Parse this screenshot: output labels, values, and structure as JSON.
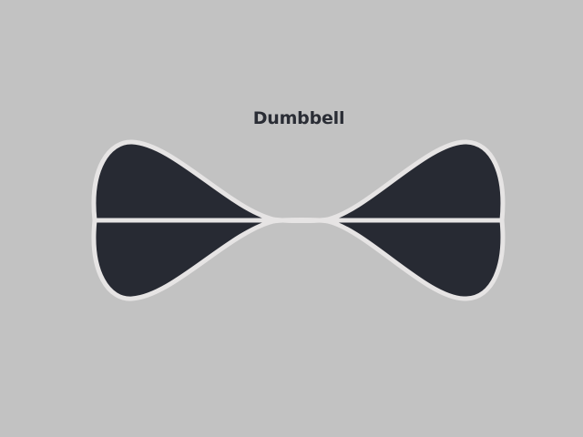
{
  "diagram": {
    "title": "Dumbbell",
    "colors": {
      "background": "#c2c2c2",
      "fill": "#272a33",
      "stroke": "#e6e4e4",
      "title": "#2a2d35"
    }
  }
}
